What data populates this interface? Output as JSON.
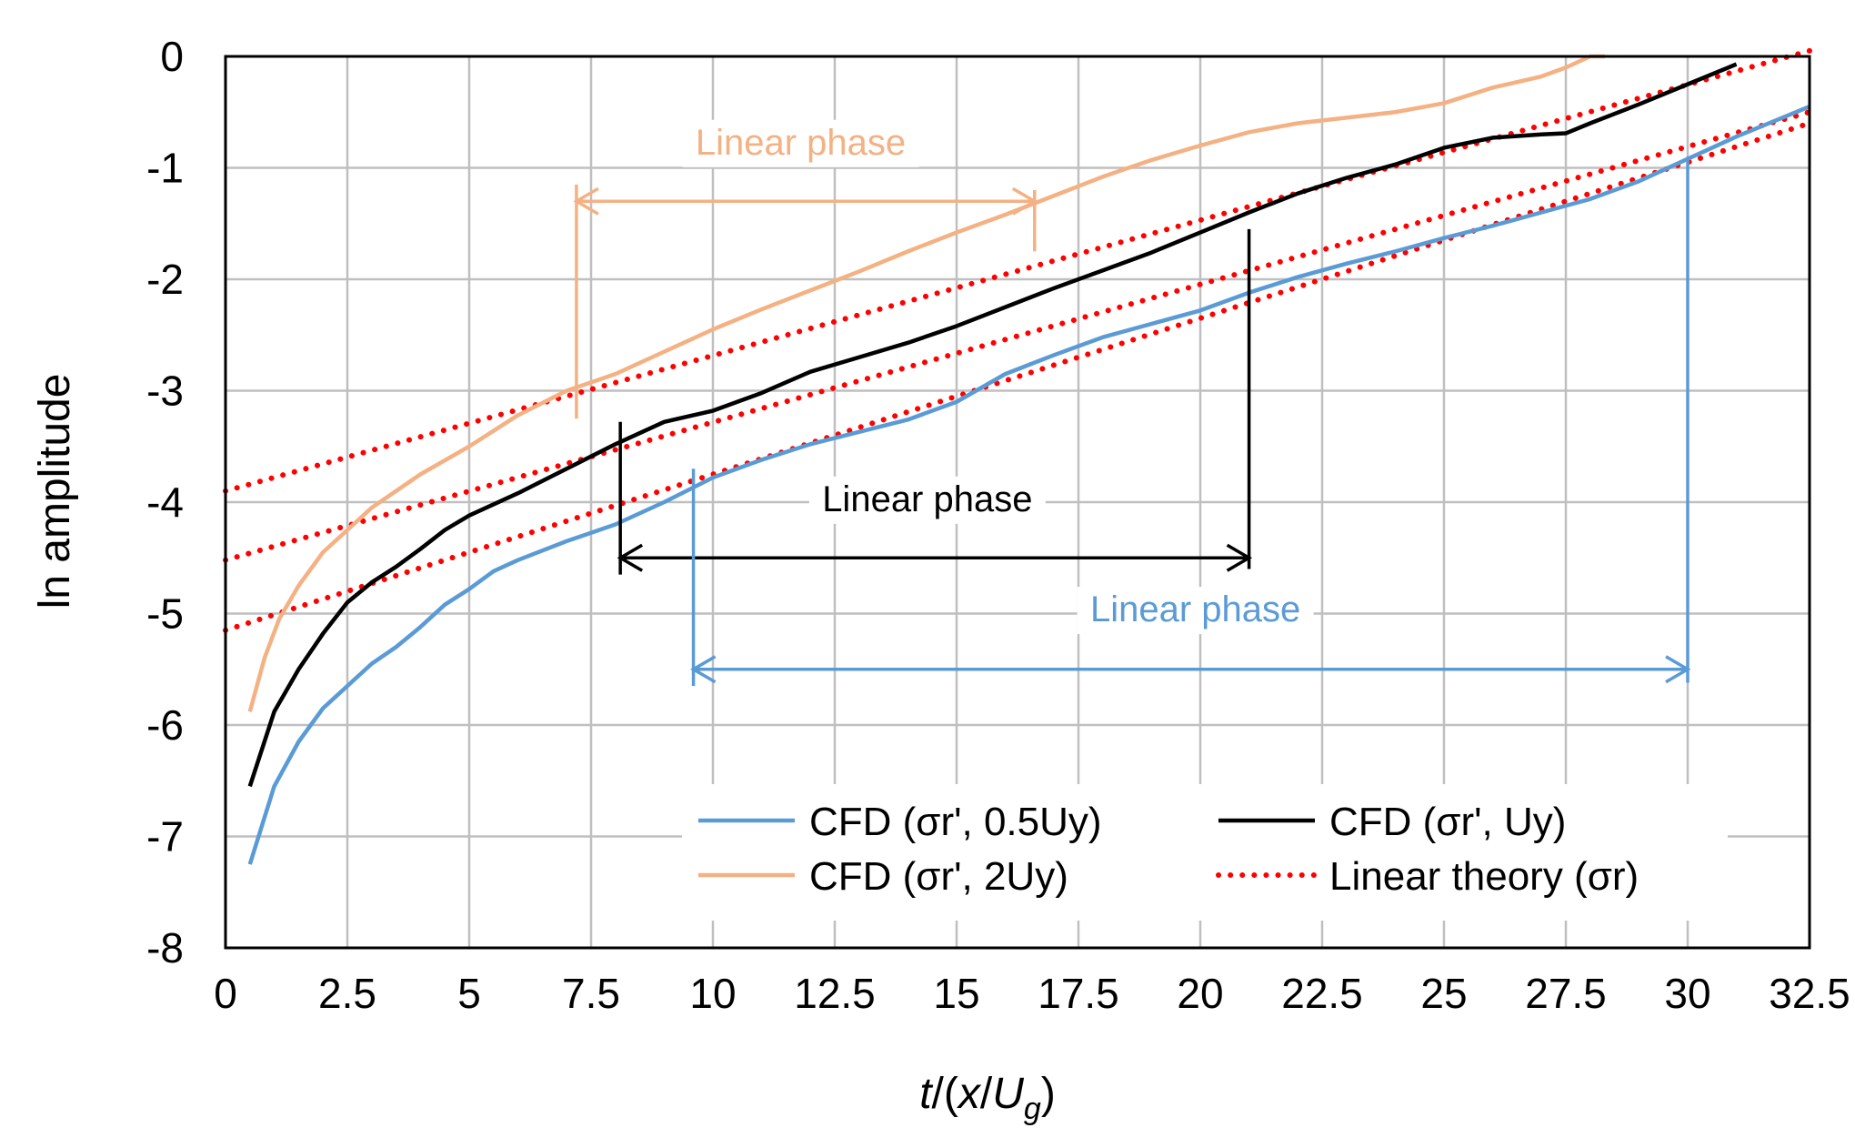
{
  "chart_data": {
    "type": "line",
    "title": "",
    "xlabel": "t/(x/U_g)",
    "xlabel_parts": {
      "t": "t",
      "mid": "/(",
      "x": "x",
      "slash": "/",
      "U": "U",
      "sub": "g",
      "close": ")"
    },
    "ylabel": "ln  amplitude",
    "xlim": [
      0,
      32.5
    ],
    "ylim": [
      -8,
      0
    ],
    "grid": true,
    "x_ticks": [
      0,
      2.5,
      5,
      7.5,
      10,
      12.5,
      15,
      17.5,
      20,
      22.5,
      25,
      27.5,
      30,
      32.5
    ],
    "x_tick_labels": [
      "0",
      "2.5",
      "5",
      "7.5",
      "10",
      "12.5",
      "15",
      "17.5",
      "20",
      "22.5",
      "25",
      "27.5",
      "30",
      "32.5"
    ],
    "y_ticks": [
      0,
      -1,
      -2,
      -3,
      -4,
      -5,
      -6,
      -7,
      -8
    ],
    "y_tick_labels": [
      "0",
      "-1",
      "-2",
      "-3",
      "-4",
      "-5",
      "-6",
      "-7",
      "-8"
    ],
    "colors": {
      "blue": "#5b9bd5",
      "black": "#000000",
      "orange": "#f4b183",
      "red": "#ff0000",
      "grid": "#bfbfbf"
    },
    "series": [
      {
        "key": "s05",
        "name": "CFD (σr', 0.5Uy)",
        "color": "#5b9bd5",
        "style": "solid",
        "x": [
          0.5,
          1.0,
          1.5,
          2.0,
          2.5,
          3.0,
          3.5,
          4.0,
          4.5,
          5.0,
          5.5,
          6.0,
          7.0,
          8.0,
          9.0,
          10.0,
          11.0,
          12.0,
          13.0,
          14.0,
          15.0,
          16.0,
          17.0,
          18.0,
          19.0,
          20.0,
          21.0,
          22.0,
          23.0,
          24.0,
          25.0,
          26.0,
          27.0,
          28.0,
          29.0,
          30.0,
          31.0,
          32.5
        ],
        "y": [
          -7.25,
          -6.55,
          -6.15,
          -5.85,
          -5.65,
          -5.45,
          -5.3,
          -5.12,
          -4.92,
          -4.78,
          -4.62,
          -4.52,
          -4.35,
          -4.2,
          -4.0,
          -3.78,
          -3.62,
          -3.48,
          -3.37,
          -3.26,
          -3.1,
          -2.85,
          -2.68,
          -2.52,
          -2.4,
          -2.28,
          -2.12,
          -1.98,
          -1.86,
          -1.75,
          -1.63,
          -1.52,
          -1.4,
          -1.28,
          -1.12,
          -0.92,
          -0.72,
          -0.45
        ]
      },
      {
        "key": "s1",
        "name": "CFD (σr', Uy)",
        "color": "#000000",
        "style": "solid",
        "x": [
          0.5,
          1.0,
          1.5,
          2.0,
          2.5,
          3.0,
          3.5,
          4.0,
          4.5,
          5.0,
          5.5,
          6.0,
          7.0,
          8.0,
          9.0,
          10.0,
          11.0,
          12.0,
          13.0,
          14.0,
          15.0,
          16.0,
          17.0,
          18.0,
          19.0,
          20.0,
          21.0,
          22.0,
          23.0,
          24.0,
          25.0,
          26.0,
          27.0,
          27.5,
          28.0,
          29.0,
          30.0,
          31.0
        ],
        "y": [
          -6.55,
          -5.88,
          -5.5,
          -5.18,
          -4.9,
          -4.72,
          -4.58,
          -4.42,
          -4.25,
          -4.12,
          -4.02,
          -3.92,
          -3.7,
          -3.48,
          -3.28,
          -3.18,
          -3.02,
          -2.83,
          -2.7,
          -2.57,
          -2.42,
          -2.25,
          -2.08,
          -1.92,
          -1.76,
          -1.58,
          -1.4,
          -1.23,
          -1.09,
          -0.97,
          -0.82,
          -0.73,
          -0.7,
          -0.69,
          -0.6,
          -0.43,
          -0.25,
          -0.07
        ]
      },
      {
        "key": "s2",
        "name": "CFD (σr', 2Uy)",
        "color": "#f4b183",
        "style": "solid",
        "x": [
          0.5,
          0.8,
          1.1,
          1.5,
          2.0,
          2.5,
          3.0,
          3.5,
          4.0,
          5.0,
          6.0,
          7.0,
          8.0,
          9.0,
          10.0,
          11.0,
          12.0,
          13.0,
          14.0,
          15.0,
          16.0,
          17.0,
          18.0,
          19.0,
          20.0,
          21.0,
          22.0,
          23.0,
          24.0,
          25.0,
          26.0,
          27.0,
          27.5,
          28.0,
          28.3
        ],
        "y": [
          -5.88,
          -5.4,
          -5.05,
          -4.75,
          -4.45,
          -4.25,
          -4.05,
          -3.9,
          -3.75,
          -3.5,
          -3.22,
          -3.0,
          -2.85,
          -2.65,
          -2.45,
          -2.27,
          -2.1,
          -1.93,
          -1.75,
          -1.58,
          -1.42,
          -1.25,
          -1.08,
          -0.93,
          -0.8,
          -0.68,
          -0.6,
          -0.55,
          -0.5,
          -0.42,
          -0.28,
          -0.18,
          -0.1,
          0.0,
          0.0
        ]
      },
      {
        "key": "lt",
        "name": "Linear theory (σr)",
        "color": "#ff0000",
        "style": "dotted",
        "lines": [
          {
            "x": [
              0,
              32.5
            ],
            "y": [
              -3.9,
              0.05
            ]
          },
          {
            "x": [
              0,
              32.5
            ],
            "y": [
              -4.52,
              -0.5
            ]
          },
          {
            "x": [
              0,
              32.5
            ],
            "y": [
              -5.15,
              -0.6
            ]
          }
        ]
      }
    ],
    "legend": {
      "position": "bottom-right",
      "order": [
        "s05",
        "s1",
        "s2",
        "lt"
      ]
    },
    "annotations": [
      {
        "key": "a2",
        "text": "Linear phase",
        "color": "#f4b183",
        "x_start": 7.2,
        "x_end": 16.6,
        "arrow_y": -1.3,
        "label_x": 11.8,
        "label_y": -0.88,
        "left_bar": [
          -1.15,
          -3.25
        ],
        "right_bar": [
          -1.2,
          -1.75
        ]
      },
      {
        "key": "a1",
        "text": "Linear phase",
        "color": "#000000",
        "x_start": 8.1,
        "x_end": 21.0,
        "arrow_y": -4.5,
        "label_x": 14.4,
        "label_y": -4.08,
        "left_bar": [
          -3.28,
          -4.65
        ],
        "right_bar": [
          -1.55,
          -4.6
        ]
      },
      {
        "key": "a05",
        "text": "Linear phase",
        "color": "#5b9bd5",
        "x_start": 9.6,
        "x_end": 30.0,
        "arrow_y": -5.5,
        "label_x": 19.9,
        "label_y": -5.07,
        "left_bar": [
          -3.7,
          -5.65
        ],
        "right_bar": [
          -0.9,
          -5.62
        ]
      }
    ]
  }
}
